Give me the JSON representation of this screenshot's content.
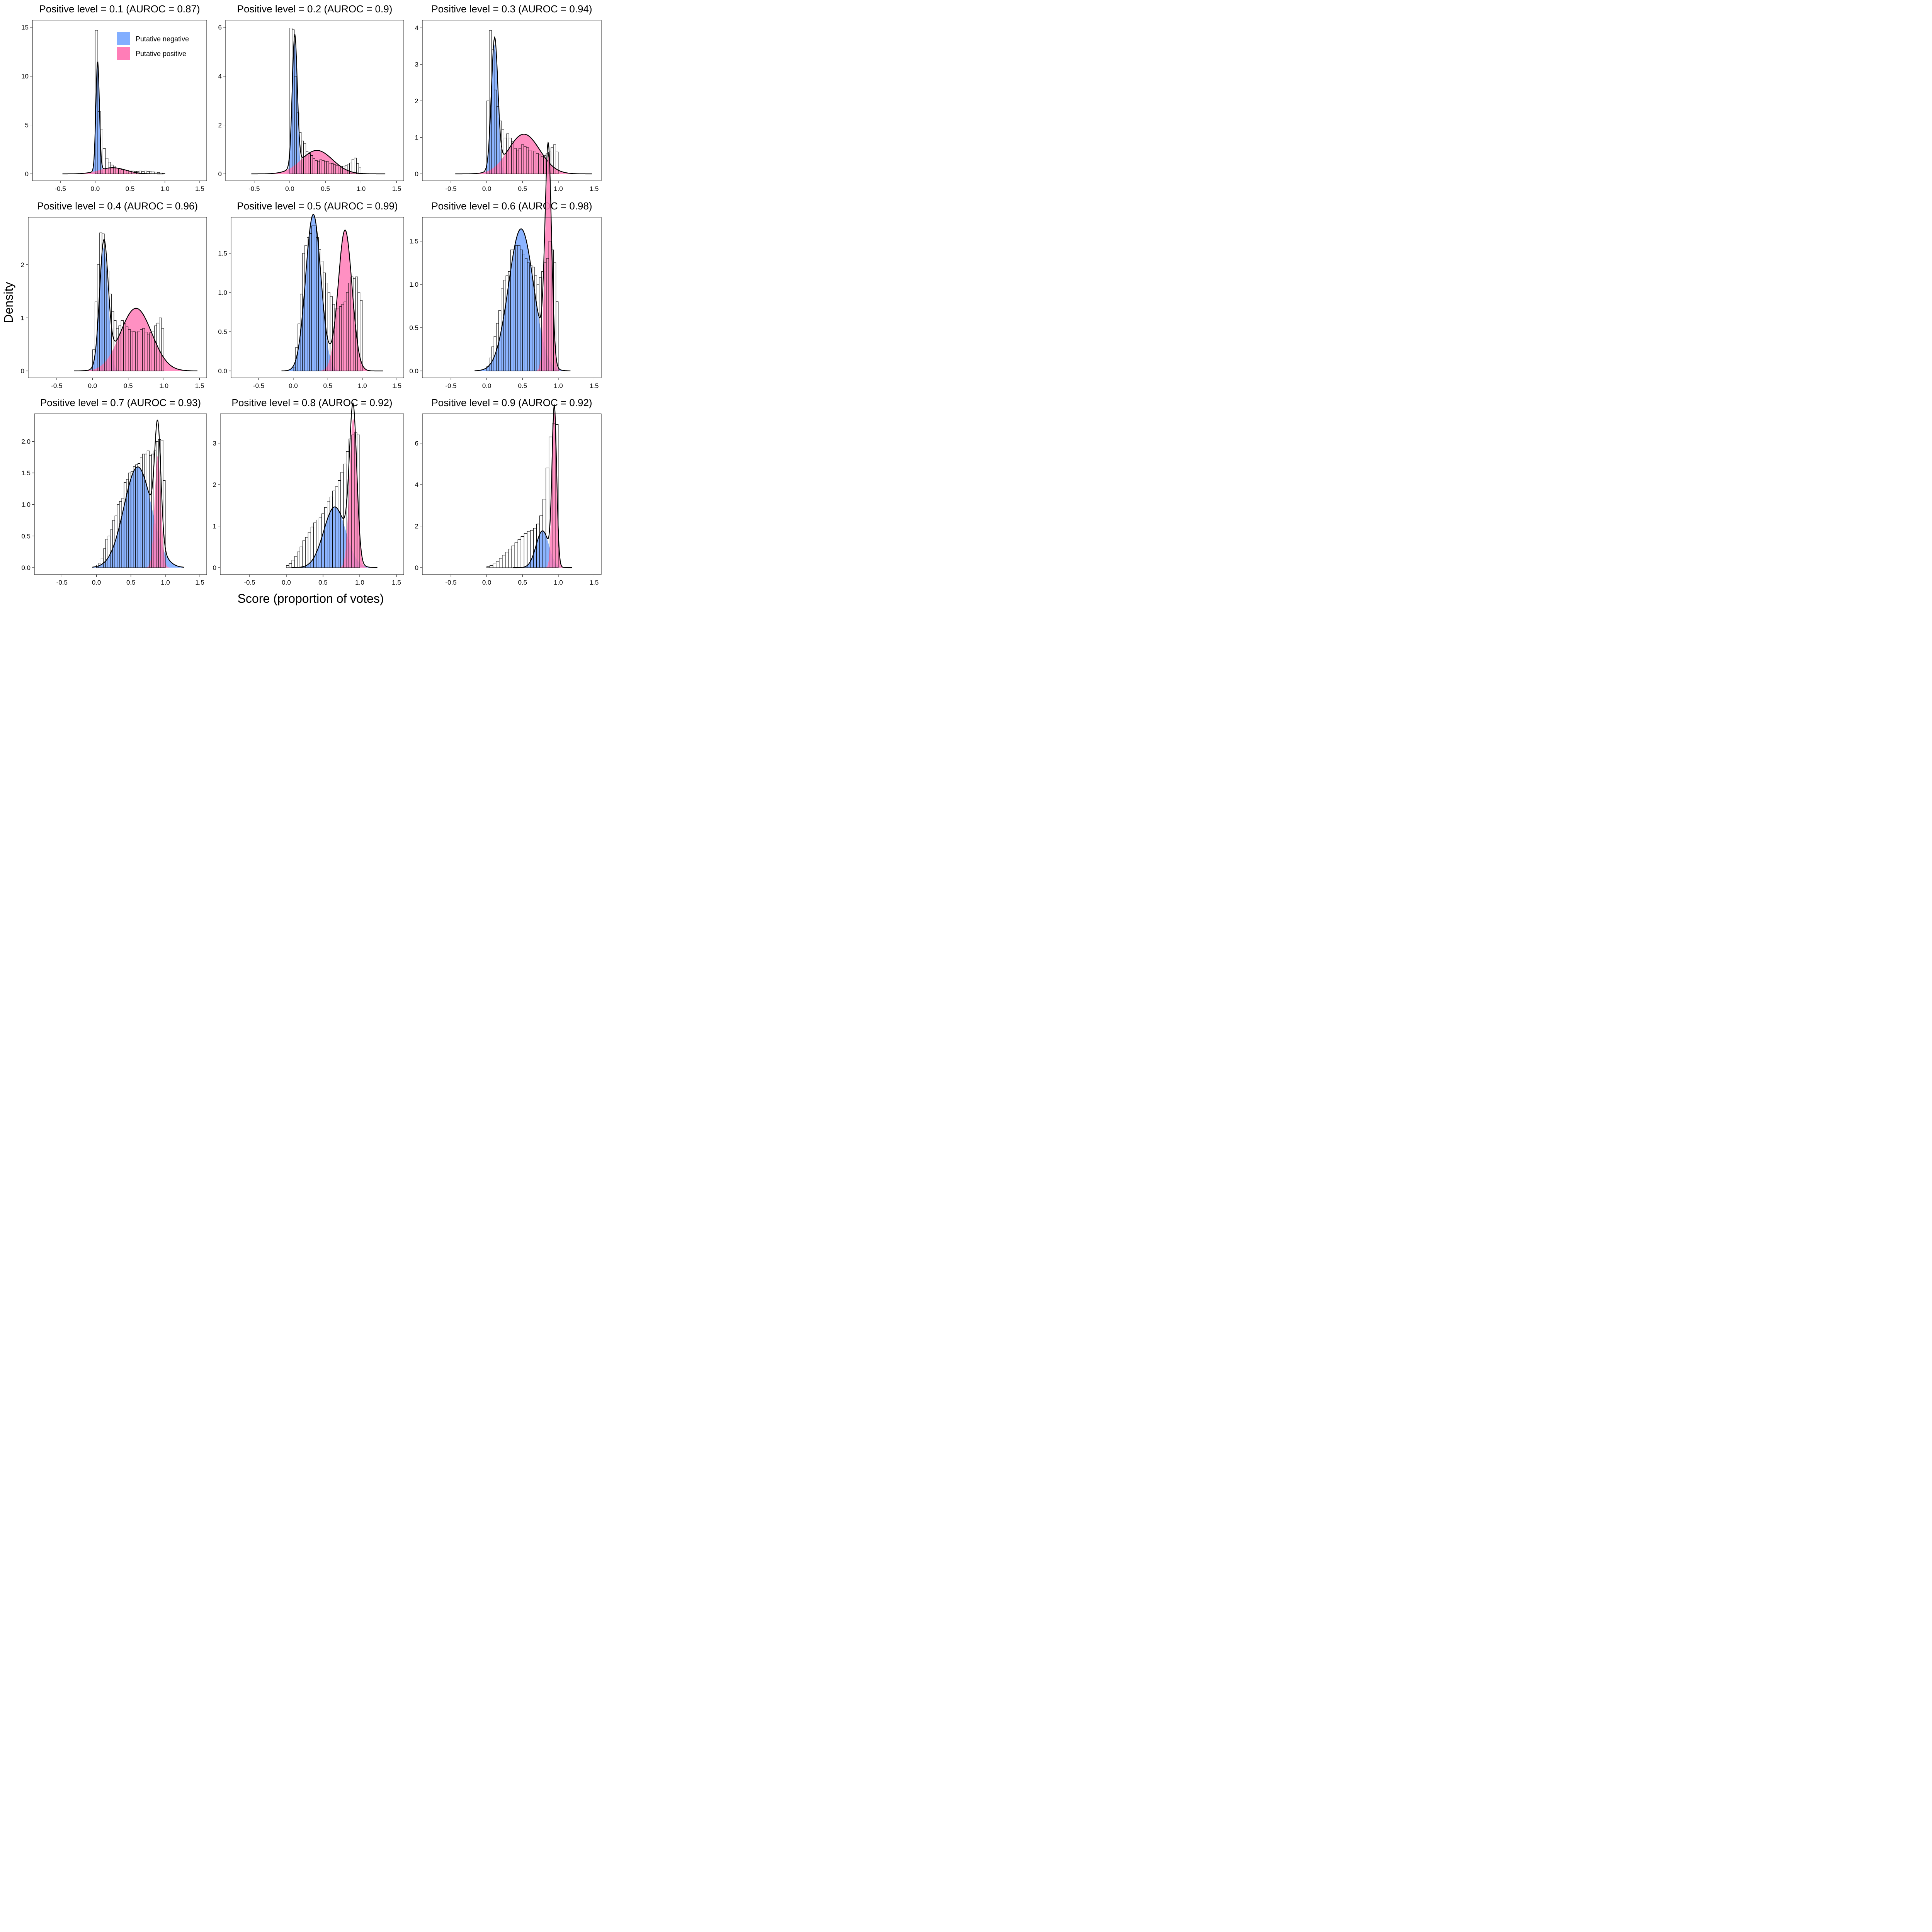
{
  "chart_data": {
    "type": "histogram-density-panels",
    "xlabel": "Score (proportion of votes)",
    "ylabel": "Density",
    "legend": {
      "placement": "top-right of first panel",
      "entries": [
        {
          "label": "Putative negative",
          "color": "#82AEFF"
        },
        {
          "label": "Putative positive",
          "color": "#FF7DB7"
        }
      ]
    },
    "colors": {
      "negative": "#82AEFF",
      "positive": "#FF7DB7",
      "overlap": "#B98BD6",
      "line": "#000000"
    },
    "xlim": [
      -0.9,
      1.6
    ],
    "xticks": [
      "-0.5",
      "0.0",
      "0.5",
      "1.0",
      "1.5"
    ],
    "panels": [
      {
        "title": "Positive level = 0.1 (AUROC = 0.87)",
        "ylim": [
          0,
          15.5
        ],
        "yticks": [
          "0",
          "5",
          "10",
          "15"
        ],
        "neg": {
          "w": 0.7,
          "mu": 0.035,
          "sd": 0.025
        },
        "pos": {
          "w": 0.3,
          "mu": 0.25,
          "sd": 0.19
        },
        "hist": [
          14.7,
          6.4,
          4.5,
          2.6,
          1.6,
          1.2,
          0.9,
          0.8,
          0.6,
          0.5,
          0.45,
          0.4,
          0.35,
          0.3,
          0.3,
          0.25,
          0.25,
          0.3,
          0.25,
          0.3,
          0.25,
          0.22,
          0.2,
          0.18,
          0.15,
          0.1,
          0.05
        ],
        "density_range": [
          -0.47,
          0.98
        ]
      },
      {
        "title": "Positive level = 0.2 (AUROC = 0.9)",
        "ylim": [
          0,
          6.2
        ],
        "yticks": [
          "0",
          "2",
          "4",
          "6"
        ],
        "neg": {
          "w": 0.47,
          "mu": 0.07,
          "sd": 0.035
        },
        "pos": {
          "w": 0.53,
          "mu": 0.38,
          "sd": 0.22
        },
        "hist": [
          5.97,
          5.9,
          4.0,
          2.5,
          1.7,
          1.35,
          1.25,
          0.92,
          0.83,
          0.75,
          0.63,
          0.55,
          0.52,
          0.58,
          0.55,
          0.52,
          0.5,
          0.44,
          0.42,
          0.38,
          0.35,
          0.33,
          0.3,
          0.32,
          0.35,
          0.4,
          0.45,
          0.6,
          0.65,
          0.42,
          0.25
        ],
        "density_range": [
          -0.54,
          1.34
        ]
      },
      {
        "title": "Positive level = 0.3 (AUROC = 0.94)",
        "ylim": [
          0,
          4.15
        ],
        "yticks": [
          "0",
          "1",
          "2",
          "3",
          "4"
        ],
        "neg": {
          "w": 0.4,
          "mu": 0.11,
          "sd": 0.045
        },
        "pos": {
          "w": 0.6,
          "mu": 0.52,
          "sd": 0.22
        },
        "hist": [
          2.0,
          3.93,
          3.4,
          2.3,
          1.85,
          1.45,
          1.22,
          0.98,
          1.1,
          0.98,
          0.88,
          0.7,
          0.65,
          0.7,
          0.8,
          0.75,
          0.72,
          0.65,
          0.63,
          0.6,
          0.56,
          0.52,
          0.48,
          0.5,
          0.55,
          0.6,
          0.72,
          0.8,
          0.6
        ],
        "density_range": [
          -0.44,
          1.47
        ]
      },
      {
        "title": "Positive level = 0.4 (AUROC = 0.96)",
        "ylim": [
          0,
          2.85
        ],
        "yticks": [
          "0",
          "1",
          "2"
        ],
        "neg": {
          "w": 0.35,
          "mu": 0.16,
          "sd": 0.06
        },
        "pos": {
          "w": 0.65,
          "mu": 0.61,
          "sd": 0.22
        },
        "hist": [
          0.4,
          1.3,
          2.0,
          2.6,
          2.58,
          2.2,
          1.88,
          1.45,
          1.12,
          0.95,
          0.8,
          0.85,
          0.95,
          0.9,
          0.83,
          0.78,
          0.75,
          0.74,
          0.73,
          0.75,
          0.78,
          0.8,
          0.73,
          0.68,
          0.72,
          0.75,
          0.85,
          0.9,
          1.0,
          0.8
        ],
        "density_range": [
          -0.26,
          1.47
        ]
      },
      {
        "title": "Positive level = 0.5 (AUROC = 0.99)",
        "ylim": [
          0,
          1.93
        ],
        "yticks": [
          "0.0",
          "0.5",
          "1.0",
          "1.5"
        ],
        "neg": {
          "w": 0.55,
          "mu": 0.29,
          "sd": 0.11
        },
        "pos": {
          "w": 0.45,
          "mu": 0.75,
          "sd": 0.1
        },
        "hist": [
          0.05,
          0.3,
          0.6,
          0.98,
          1.5,
          1.6,
          1.7,
          1.75,
          1.85,
          1.85,
          1.7,
          1.55,
          1.4,
          1.25,
          1.12,
          1.0,
          0.95,
          0.85,
          0.8,
          0.8,
          0.82,
          0.85,
          0.88,
          1.0,
          1.12,
          1.2,
          1.18,
          1.2,
          1.0,
          0.9
        ],
        "density_range": [
          -0.17,
          1.3
        ]
      },
      {
        "title": "Positive level = 0.6 (AUROC = 0.98)",
        "ylim": [
          0,
          1.75
        ],
        "yticks": [
          "0.0",
          "0.5",
          "1.0",
          "1.5"
        ],
        "neg": {
          "w": 0.72,
          "mu": 0.48,
          "sd": 0.175
        },
        "pos": {
          "w": 0.28,
          "mu": 0.86,
          "sd": 0.045
        },
        "hist": [
          0.05,
          0.15,
          0.28,
          0.4,
          0.55,
          0.7,
          0.95,
          1.05,
          1.1,
          1.15,
          1.4,
          1.4,
          1.45,
          1.45,
          1.4,
          1.35,
          1.3,
          1.25,
          1.22,
          1.2,
          1.1,
          1.0,
          1.08,
          1.15,
          1.25,
          1.3,
          1.5,
          1.4,
          1.25,
          0.8
        ],
        "density_range": [
          -0.17,
          1.17
        ]
      },
      {
        "title": "Positive level = 0.7 (AUROC = 0.93)",
        "ylim": [
          0,
          2.4
        ],
        "yticks": [
          "0.0",
          "0.5",
          "1.0",
          "1.5",
          "2.0"
        ],
        "neg": {
          "w": 0.8,
          "mu": 0.6,
          "sd": 0.2
        },
        "pos": {
          "w": 0.2,
          "mu": 0.89,
          "sd": 0.045
        },
        "hist": [
          0.04,
          0.07,
          0.15,
          0.3,
          0.45,
          0.5,
          0.6,
          0.75,
          0.82,
          1.0,
          1.05,
          1.1,
          1.35,
          1.4,
          1.5,
          1.52,
          1.6,
          1.63,
          1.65,
          1.75,
          1.8,
          1.8,
          1.85,
          1.78,
          1.8,
          1.85,
          2.0,
          2.03,
          2.02,
          1.38
        ],
        "density_range": [
          -0.06,
          1.27
        ]
      },
      {
        "title": "Positive level = 0.8 (AUROC = 0.92)",
        "ylim": [
          0,
          3.65
        ],
        "yticks": [
          "0",
          "1",
          "2",
          "3"
        ],
        "neg": {
          "w": 0.55,
          "mu": 0.66,
          "sd": 0.15
        },
        "pos": {
          "w": 0.45,
          "mu": 0.91,
          "sd": 0.05
        },
        "hist": [
          0.05,
          0.1,
          0.18,
          0.27,
          0.38,
          0.5,
          0.65,
          0.73,
          0.85,
          0.98,
          1.08,
          1.15,
          1.2,
          1.3,
          1.45,
          1.6,
          1.7,
          1.85,
          1.95,
          2.1,
          2.3,
          2.5,
          2.8,
          3.1,
          3.2,
          3.25,
          3.2
        ],
        "density_range": [
          0.07,
          1.24
        ]
      },
      {
        "title": "Positive level = 0.9 (AUROC = 0.92)",
        "ylim": [
          0,
          7.3
        ],
        "yticks": [
          "0",
          "2",
          "4",
          "6"
        ],
        "neg": {
          "w": 0.4,
          "mu": 0.78,
          "sd": 0.09
        },
        "pos": {
          "w": 0.6,
          "mu": 0.945,
          "sd": 0.032
        },
        "hist": [
          0.05,
          0.1,
          0.18,
          0.3,
          0.45,
          0.6,
          0.75,
          0.9,
          1.05,
          1.2,
          1.35,
          1.5,
          1.65,
          1.75,
          1.8,
          1.9,
          2.1,
          2.5,
          3.3,
          4.8,
          6.3,
          6.93,
          6.9
        ],
        "density_range": [
          0.37,
          1.19
        ]
      }
    ]
  }
}
